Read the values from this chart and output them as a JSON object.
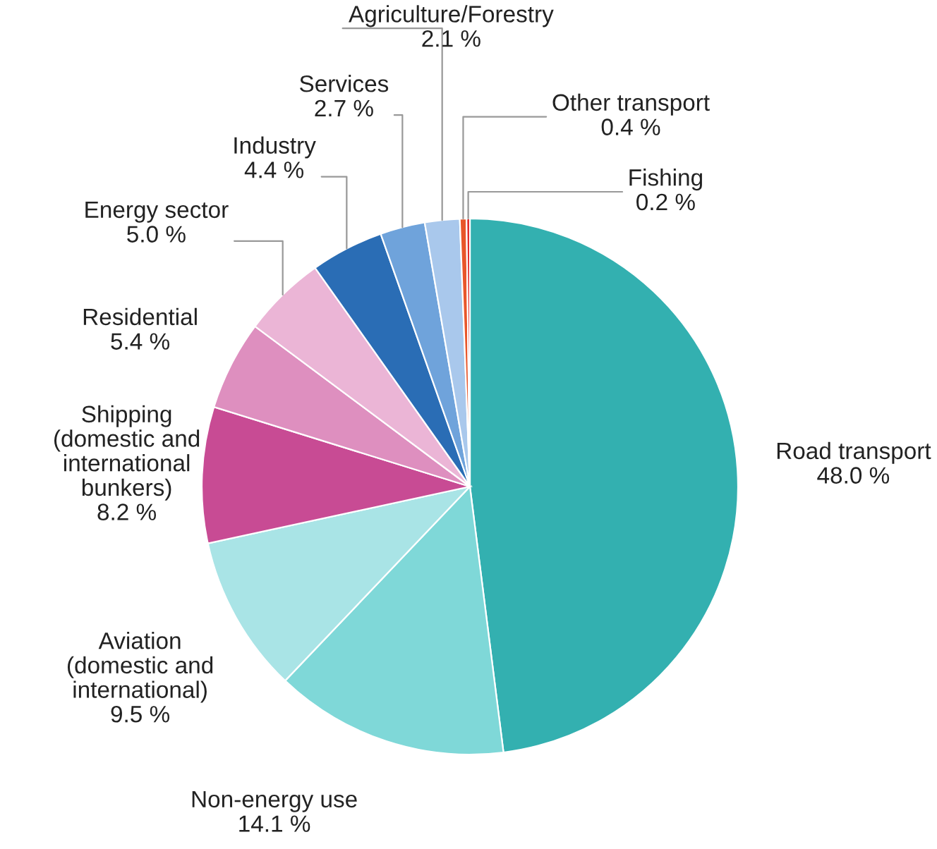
{
  "chart_data": {
    "type": "pie",
    "categories": [
      "Road transport",
      "Non-energy use",
      "Aviation\n(domestic and\ninternational)",
      "Shipping\n(domestic and\ninternational\nbunkers)",
      "Residential",
      "Energy sector",
      "Industry",
      "Services",
      "Agriculture/Forestry",
      "Other transport",
      "Fishing"
    ],
    "values": [
      48.0,
      14.1,
      9.5,
      8.2,
      5.4,
      5.0,
      4.4,
      2.7,
      2.1,
      0.4,
      0.2
    ],
    "colors": [
      "#33b0b0",
      "#7fd8d8",
      "#a9e4e6",
      "#c84b94",
      "#de8fbf",
      "#ebb5d6",
      "#2a6db5",
      "#6fa3db",
      "#a9c8ec",
      "#e8562a",
      "#e02020"
    ],
    "value_labels": [
      "48.0 %",
      "14.1 %",
      "9.5 %",
      "8.2 %",
      "5.4 %",
      "5.0 %",
      "4.4 %",
      "2.7 %",
      "2.1 %",
      "0.4 %",
      "0.2 %"
    ]
  }
}
